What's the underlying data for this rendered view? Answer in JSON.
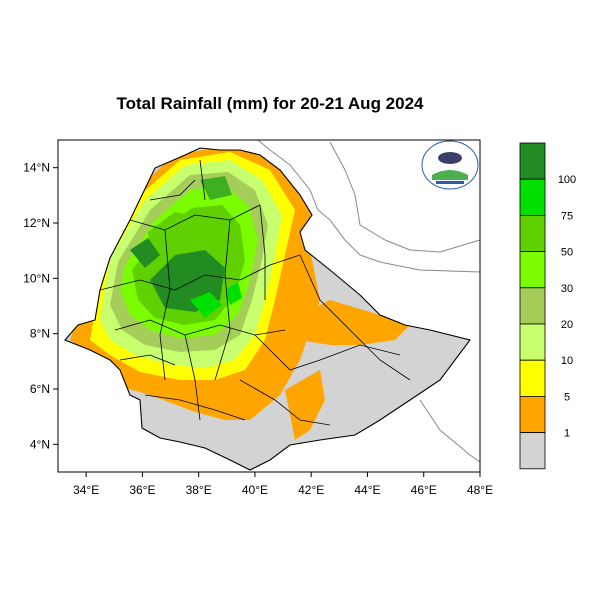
{
  "title": "Total Rainfall (mm) for 20-21 Aug 2024",
  "map": {
    "type": "choropleth-raster",
    "region": "Ethiopia",
    "lon_range": [
      33,
      48
    ],
    "lat_range": [
      3,
      15
    ],
    "x_ticks": [
      "34°E",
      "36°E",
      "38°E",
      "40°E",
      "42°E",
      "44°E",
      "46°E",
      "48°E"
    ],
    "y_ticks": [
      "14°N",
      "12°N",
      "10°N",
      "8°N",
      "6°N",
      "4°N"
    ],
    "legend_labels": [
      "100",
      "75",
      "50",
      "30",
      "20",
      "10",
      "5",
      "1"
    ],
    "legend_colors": [
      "#228b22",
      "#00e000",
      "#5fd000",
      "#7cfc00",
      "#a4cd5a",
      "#c8ff6e",
      "#ffff00",
      "#ffa500",
      "#d3d3d3"
    ],
    "logo_icon": "agency-logo-icon"
  }
}
